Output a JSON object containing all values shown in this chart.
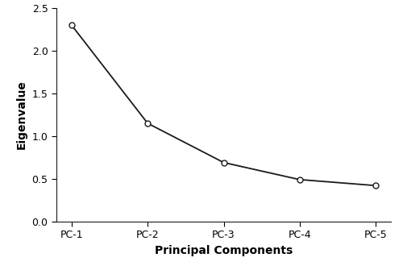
{
  "categories": [
    "PC-1",
    "PC-2",
    "PC-3",
    "PC-4",
    "PC-5"
  ],
  "values": [
    2.3,
    1.15,
    0.69,
    0.49,
    0.42
  ],
  "xlabel": "Principal Components",
  "ylabel": "Eigenvalue",
  "ylim": [
    0.0,
    2.5
  ],
  "yticks": [
    0.0,
    0.5,
    1.0,
    1.5,
    2.0,
    2.5
  ],
  "line_color": "#1a1a1a",
  "marker": "o",
  "marker_facecolor": "#ffffff",
  "marker_edgecolor": "#1a1a1a",
  "marker_size": 5,
  "line_width": 1.3,
  "background_color": "#ffffff",
  "xlabel_fontsize": 10,
  "ylabel_fontsize": 10,
  "tick_fontsize": 9
}
